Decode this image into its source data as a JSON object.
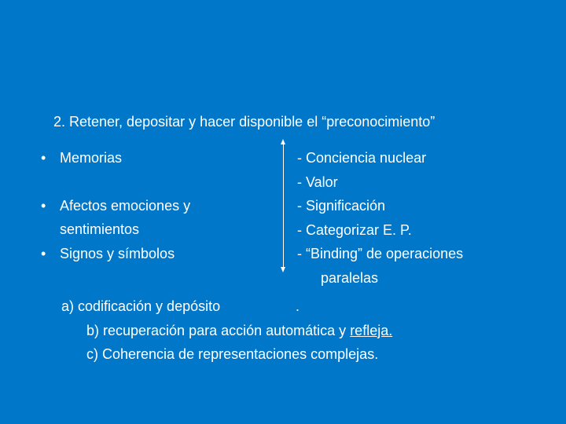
{
  "heading": "2. Retener, depositar y hacer disponible el “preconocimiento”",
  "left": {
    "items": [
      "Memorias",
      "Afectos emociones y sentimientos",
      "Signos y símbolos"
    ],
    "bullet": "•"
  },
  "right": {
    "items": [
      "- Conciencia nuclear",
      "- Valor",
      "- Significación",
      "- Categorizar E. P.",
      "- “Binding” de operaciones",
      "  paralelas"
    ]
  },
  "bottom": {
    "a": "a) codificación y depósito",
    "dot": ".",
    "b_pre": "b) recuperación para acción automática y ",
    "b_under": "refleja.",
    "c": "c) Coherencia de representaciones complejas."
  },
  "colors": {
    "background": "#0077c8",
    "text": "#ffffff"
  },
  "font": {
    "family": "Arial",
    "size_pt": 18
  }
}
